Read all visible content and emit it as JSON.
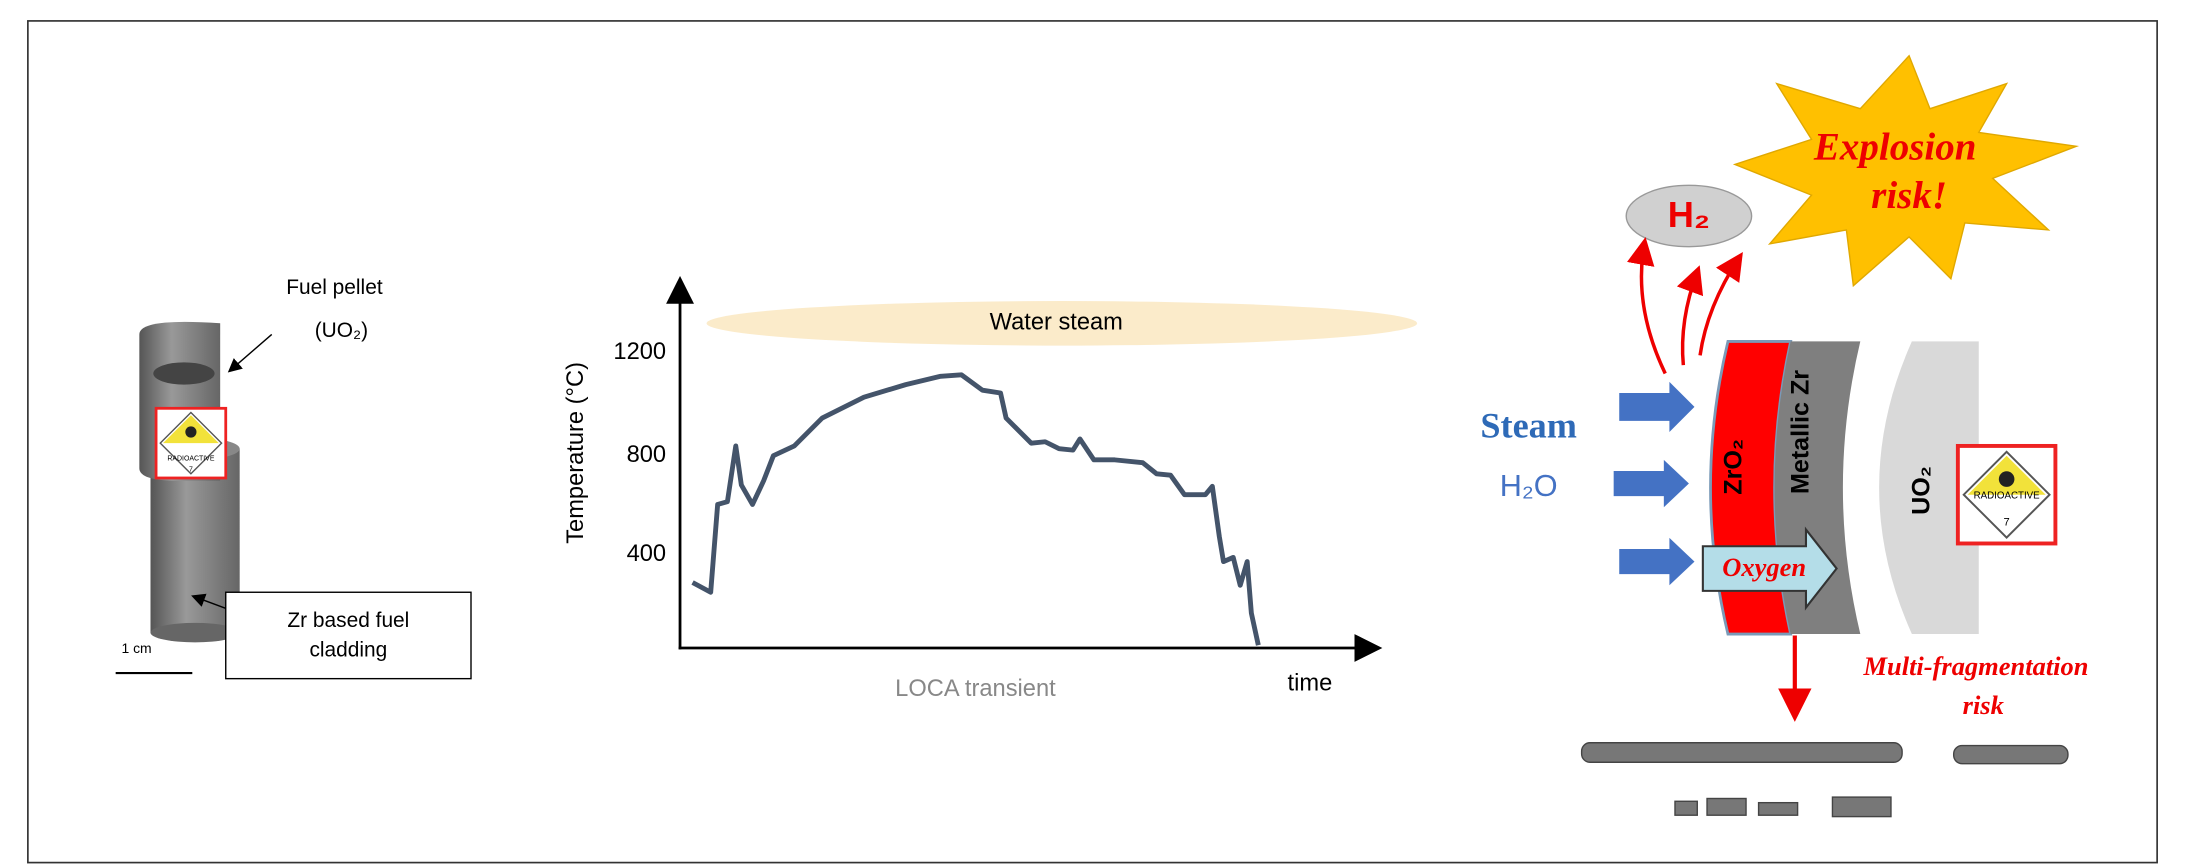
{
  "left_panel": {
    "pellet_label": [
      "Fuel pellet",
      "(UO₂)"
    ],
    "cladding_label": [
      "Zr based fuel",
      "cladding"
    ],
    "scale_label": "1 cm",
    "sign": {
      "text": "RADIOACTIVE",
      "class": "7"
    }
  },
  "middle_panel": {
    "cloud_label": "Water steam",
    "y_axis_label": "Temperature (°C)",
    "y_tick_labels": [
      "1200",
      "800",
      "400"
    ],
    "x_axis_label": "time",
    "caption": "LOCA transient"
  },
  "right_panel": {
    "explosion": [
      "Explosion",
      "risk!"
    ],
    "gas": "H₂",
    "steam": [
      "Steam",
      "H₂O"
    ],
    "layers": [
      "ZrO₂",
      "Metallic Zr",
      "UO₂"
    ],
    "oxygen": "Oxygen",
    "sign": {
      "text": "RADIOACTIVE",
      "class": "7"
    },
    "fragmentation": [
      "Multi-fragmentation",
      "risk"
    ]
  }
}
